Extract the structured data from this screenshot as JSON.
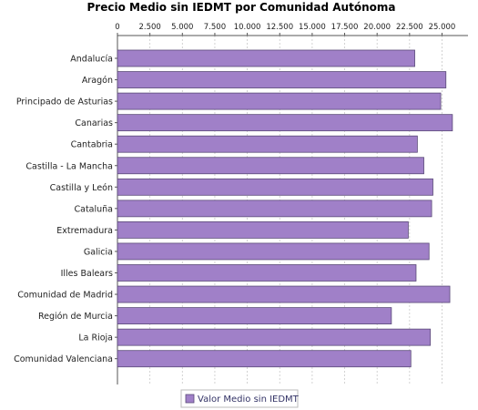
{
  "chart_data": {
    "type": "bar",
    "orientation": "horizontal",
    "title": "Precio Medio sin IEDMT por Comunidad Autónoma",
    "xlabel": "",
    "ylabel": "",
    "xlim": [
      0,
      27000
    ],
    "ticks": [
      0,
      2500,
      5000,
      7500,
      10000,
      12500,
      15000,
      17500,
      20000,
      22500,
      25000
    ],
    "tick_labels": [
      "0",
      "2.500",
      "5.000",
      "7.500",
      "10.000",
      "12.500",
      "15.000",
      "17.500",
      "20.000",
      "22.500",
      "25.000"
    ],
    "x_axis_position": "top",
    "grid": true,
    "legend": "bottom-center",
    "bar_color": "#a080c8",
    "bar_edge_color": "#5a4a78",
    "categories": [
      "Andalucía",
      "Aragón",
      "Principado de Asturias",
      "Canarias",
      "Cantabria",
      "Castilla - La Mancha",
      "Castilla y León",
      "Cataluña",
      "Extremadura",
      "Galicia",
      "Illes Balears",
      "Comunidad de Madrid",
      "Región de Murcia",
      "La Rioja",
      "Comunidad Valenciana"
    ],
    "series": [
      {
        "name": "Valor Medio sin IEDMT",
        "values": [
          22900,
          25300,
          24900,
          25800,
          23100,
          23600,
          24300,
          24200,
          22400,
          24000,
          23000,
          25600,
          21100,
          24100,
          22600
        ]
      }
    ]
  }
}
